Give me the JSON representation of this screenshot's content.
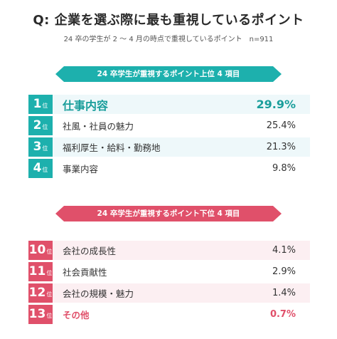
{
  "title": "Q: 企業を選ぶ際に最も重視しているポイント",
  "subtitle": "24 卒の学生が 2 〜 4 月の時点で重視しているポイント　n=911",
  "rank_suffix": "位",
  "chart_data": [
    {
      "type": "table",
      "title": "24 卒学生が重視するポイント上位 4 項目",
      "rows": [
        {
          "rank": "1",
          "label": "仕事内容",
          "value": "29.9%"
        },
        {
          "rank": "2",
          "label": "社風・社員の魅力",
          "value": "25.4%"
        },
        {
          "rank": "3",
          "label": "福利厚生・給料・勤務地",
          "value": "21.3%"
        },
        {
          "rank": "4",
          "label": "事業内容",
          "value": "9.8%"
        }
      ]
    },
    {
      "type": "table",
      "title": "24 卒学生が重視するポイント下位 4 項目",
      "rows": [
        {
          "rank": "10",
          "label": "会社の成長性",
          "value": "4.1%"
        },
        {
          "rank": "11",
          "label": "社会貢献性",
          "value": "2.9%"
        },
        {
          "rank": "12",
          "label": "会社の規模・魅力",
          "value": "1.4%"
        },
        {
          "rank": "13",
          "label": "その他",
          "value": "0.7%"
        }
      ]
    }
  ],
  "colors": {
    "top_accent": "#1db0ad",
    "bottom_accent": "#e0506a"
  }
}
